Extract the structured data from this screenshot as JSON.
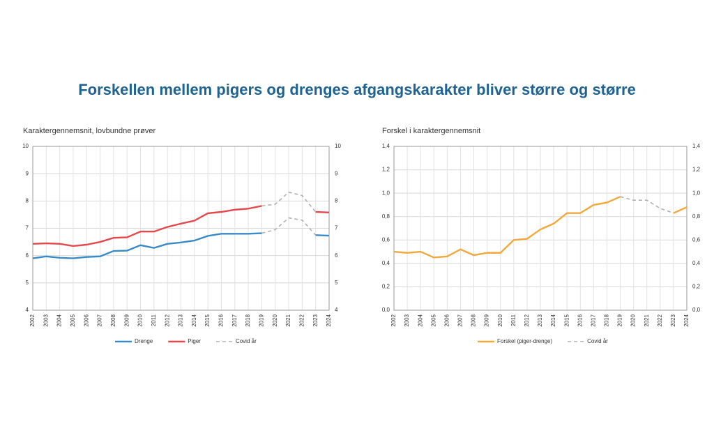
{
  "title": "Forskellen mellem pigers og drenges afgangskarakter bliver større og større",
  "chart_data": [
    {
      "type": "line",
      "title": "Karaktergennemsnit, lovbundne prøver",
      "categories": [
        "2002",
        "2003",
        "2004",
        "2005",
        "2006",
        "2007",
        "2008",
        "2009",
        "2010",
        "2011",
        "2012",
        "2013",
        "2014",
        "2015",
        "2016",
        "2017",
        "2018",
        "2019",
        "2020",
        "2021",
        "2022",
        "2023",
        "2024"
      ],
      "series": [
        {
          "name": "Drenge",
          "color": "#3a8ac8",
          "values": [
            5.9,
            5.97,
            5.92,
            5.9,
            5.95,
            5.97,
            6.17,
            6.18,
            6.38,
            6.28,
            6.43,
            6.48,
            6.55,
            6.72,
            6.8,
            6.8,
            6.8,
            6.82,
            null,
            null,
            null,
            6.75,
            6.73
          ],
          "covid_values": [
            null,
            null,
            null,
            null,
            null,
            null,
            null,
            null,
            null,
            null,
            null,
            null,
            null,
            null,
            null,
            null,
            null,
            6.82,
            6.95,
            7.38,
            7.3,
            6.75,
            null
          ]
        },
        {
          "name": "Piger",
          "color": "#e5474b",
          "values": [
            6.43,
            6.45,
            6.43,
            6.35,
            6.4,
            6.5,
            6.65,
            6.67,
            6.88,
            6.88,
            7.05,
            7.17,
            7.28,
            7.55,
            7.6,
            7.68,
            7.72,
            7.82,
            null,
            null,
            null,
            7.6,
            7.58
          ],
          "covid_values": [
            null,
            null,
            null,
            null,
            null,
            null,
            null,
            null,
            null,
            null,
            null,
            null,
            null,
            null,
            null,
            null,
            null,
            7.82,
            7.88,
            8.32,
            8.2,
            7.6,
            null
          ]
        }
      ],
      "covid": {
        "name": "Covid år",
        "color": "#b0b0b0"
      },
      "ylim": [
        4,
        10
      ],
      "yticks": [
        4,
        5,
        6,
        7,
        8,
        9,
        10
      ],
      "grid": true
    },
    {
      "type": "line",
      "title": "Forskel i karaktergennemsnit",
      "categories": [
        "2002",
        "2003",
        "2004",
        "2005",
        "2006",
        "2007",
        "2008",
        "2009",
        "2010",
        "2011",
        "2012",
        "2013",
        "2014",
        "2015",
        "2016",
        "2017",
        "2018",
        "2019",
        "2020",
        "2021",
        "2022",
        "2023",
        "2024"
      ],
      "series": [
        {
          "name": "Forskel (piger-drenge)",
          "color": "#f2a93b",
          "values": [
            0.5,
            0.49,
            0.5,
            0.45,
            0.46,
            0.52,
            0.47,
            0.49,
            0.49,
            0.6,
            0.61,
            0.69,
            0.74,
            0.83,
            0.83,
            0.9,
            0.92,
            0.97,
            null,
            null,
            null,
            0.83,
            0.88
          ],
          "covid_values": [
            null,
            null,
            null,
            null,
            null,
            null,
            null,
            null,
            null,
            null,
            null,
            null,
            null,
            null,
            null,
            null,
            null,
            0.97,
            0.94,
            0.94,
            0.87,
            0.83,
            null
          ]
        }
      ],
      "covid": {
        "name": "Covid år",
        "color": "#b0b0b0"
      },
      "ylim": [
        0,
        1.4
      ],
      "yticks": [
        {
          "value": 0,
          "label": "0,0"
        },
        {
          "value": 0.2,
          "label": "0,2"
        },
        {
          "value": 0.4,
          "label": "0,4"
        },
        {
          "value": 0.6,
          "label": "0,6"
        },
        {
          "value": 0.8,
          "label": "0,8"
        },
        {
          "value": 1.0,
          "label": "1,0"
        },
        {
          "value": 1.2,
          "label": "1,2"
        },
        {
          "value": 1.4,
          "label": "1,4"
        }
      ],
      "grid": true
    }
  ]
}
